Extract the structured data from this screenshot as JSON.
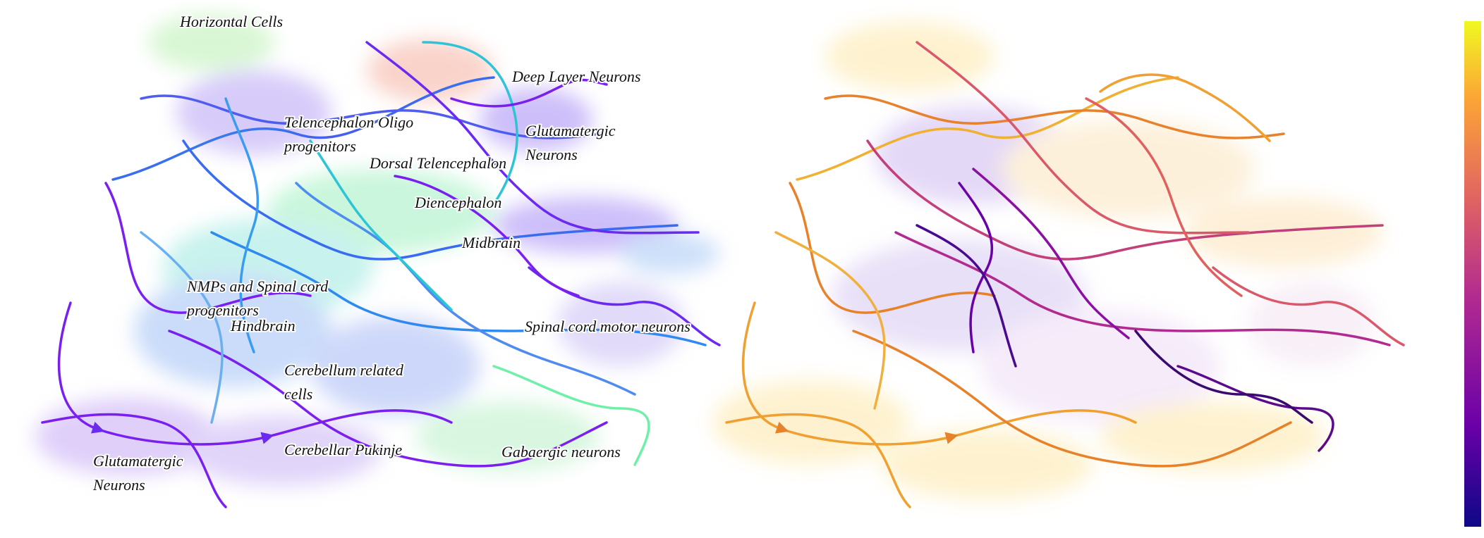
{
  "panels": [
    {
      "id": "cluster-panel",
      "coloring": "cell-type",
      "cluster_labels": [
        {
          "key": "horizontal-cells",
          "lines": [
            "Horizontal Cells"
          ]
        },
        {
          "key": "deep-layer-neurons",
          "lines": [
            "Deep Layer Neurons"
          ]
        },
        {
          "key": "telencephalon-oligo-progenitors",
          "lines": [
            "Telencephalon Oligo",
            "progenitors"
          ]
        },
        {
          "key": "glutamatergic-neurons-top",
          "lines": [
            "Glutamatergic",
            "Neurons"
          ]
        },
        {
          "key": "dorsal-telencephalon",
          "lines": [
            "Dorsal Telencephalon"
          ]
        },
        {
          "key": "diencephalon",
          "lines": [
            "Diencephalon"
          ]
        },
        {
          "key": "midbrain",
          "lines": [
            "Midbrain"
          ]
        },
        {
          "key": "nmps-spinal-cord-progenitors",
          "lines": [
            "NMPs and Spinal cord",
            "progenitors"
          ]
        },
        {
          "key": "hindbrain",
          "lines": [
            "Hindbrain"
          ]
        },
        {
          "key": "spinal-cord-motor-neurons",
          "lines": [
            "Spinal cord motor neurons"
          ]
        },
        {
          "key": "cerebellum-related-cells",
          "lines": [
            "Cerebellum related",
            "cells"
          ]
        },
        {
          "key": "cerebellar-pukinje",
          "lines": [
            "Cerebellar Pukinje"
          ]
        },
        {
          "key": "gabaergic-neurons",
          "lines": [
            "Gabaergic neurons"
          ]
        },
        {
          "key": "glutamatergic-neurons-bottom",
          "lines": [
            "Glutamatergic",
            "Neurons"
          ]
        }
      ]
    },
    {
      "id": "time-panel",
      "coloring": "continuous-plasma"
    }
  ],
  "colorbar": {
    "colormap": "plasma",
    "colors": [
      "#0d0887",
      "#6a00a8",
      "#b12a90",
      "#e16462",
      "#fca636",
      "#f0f921"
    ]
  },
  "cell_type_colors": [
    "#7a1ff0",
    "#3a6cf0",
    "#2ec4d6",
    "#6ef0a8",
    "#a8f0c0",
    "#f08a7a",
    "#c7b0f5"
  ]
}
